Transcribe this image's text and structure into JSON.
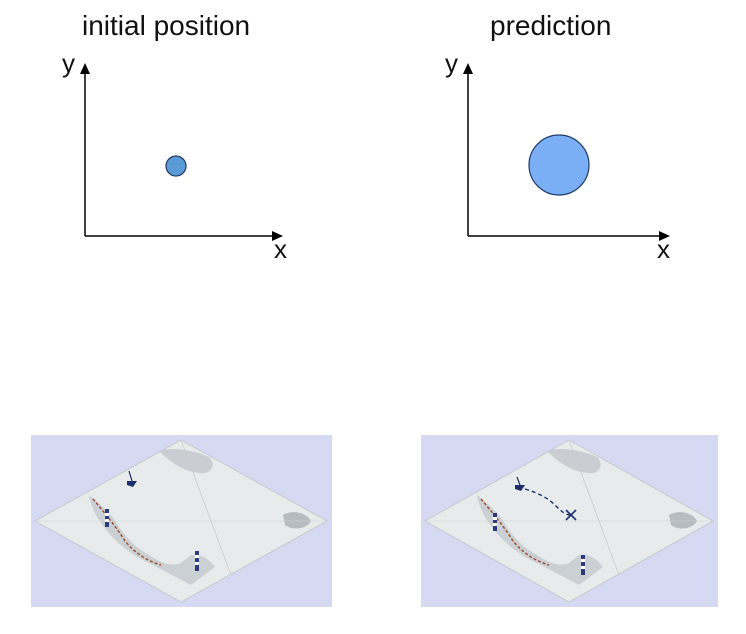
{
  "left_panel": {
    "title": "initial position",
    "y_axis_label": "y",
    "x_axis_label": "x",
    "estimate_color": "#5b9bd5"
  },
  "right_panel": {
    "title": "prediction",
    "y_axis_label": "y",
    "x_axis_label": "x",
    "estimate_color": "#7aaef5"
  },
  "left_map": {
    "icons": [
      "ship-icon",
      "lighthouse-icon",
      "lighthouse-icon"
    ]
  },
  "right_map": {
    "icons": [
      "ship-icon",
      "dashed-path",
      "cross-marker-icon",
      "lighthouse-icon",
      "lighthouse-icon"
    ]
  },
  "colors": {
    "map_background": "#d6d9f2",
    "map_paper": "#e9ecec",
    "coast": "#b9c2c8"
  }
}
